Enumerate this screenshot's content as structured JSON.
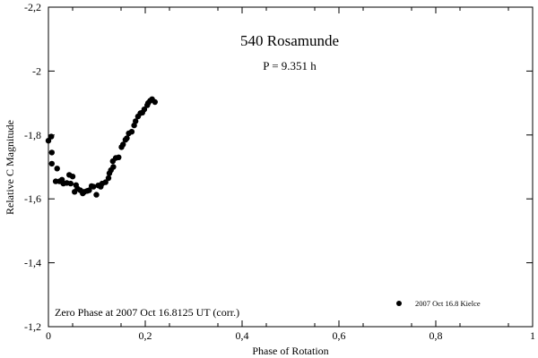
{
  "chart_data": {
    "type": "scatter",
    "title": "540 Rosamunde",
    "subtitle": "P = 9.351 h",
    "xlabel": "Phase of Rotation",
    "ylabel": "Relative C Magnitude",
    "xlim": [
      0,
      1
    ],
    "ylim": [
      -1.2,
      -2.2
    ],
    "y_axis_inverted": true,
    "grid": false,
    "x_ticks": [
      "0",
      "0,2",
      "0,4",
      "0,6",
      "0,8",
      "1"
    ],
    "y_ticks": [
      "-2,2",
      "-2",
      "-1,8",
      "-1,6",
      "-1,4",
      "-1,2"
    ],
    "x_tick_values": [
      0,
      0.2,
      0.4,
      0.6,
      0.8,
      1.0
    ],
    "y_tick_values": [
      -2.2,
      -2.0,
      -1.8,
      -1.6,
      -1.4,
      -1.2
    ],
    "annotation": "Zero Phase at 2007 Oct 16.8125 UT (corr.)",
    "legend_position": "bottom-right",
    "series": [
      {
        "name": "2007 Oct 16.8 Kielce",
        "marker": "filled-circle",
        "color": "#000000",
        "points": [
          [
            0.0,
            -1.782
          ],
          [
            0.006,
            -1.795
          ],
          [
            0.007,
            -1.745
          ],
          [
            0.007,
            -1.71
          ],
          [
            0.015,
            -1.655
          ],
          [
            0.018,
            -1.695
          ],
          [
            0.023,
            -1.655
          ],
          [
            0.028,
            -1.66
          ],
          [
            0.031,
            -1.648
          ],
          [
            0.038,
            -1.65
          ],
          [
            0.043,
            -1.675
          ],
          [
            0.046,
            -1.648
          ],
          [
            0.05,
            -1.67
          ],
          [
            0.054,
            -1.622
          ],
          [
            0.057,
            -1.643
          ],
          [
            0.06,
            -1.632
          ],
          [
            0.066,
            -1.627
          ],
          [
            0.071,
            -1.617
          ],
          [
            0.074,
            -1.622
          ],
          [
            0.08,
            -1.625
          ],
          [
            0.084,
            -1.627
          ],
          [
            0.089,
            -1.64
          ],
          [
            0.093,
            -1.638
          ],
          [
            0.099,
            -1.613
          ],
          [
            0.103,
            -1.642
          ],
          [
            0.108,
            -1.638
          ],
          [
            0.111,
            -1.648
          ],
          [
            0.118,
            -1.652
          ],
          [
            0.124,
            -1.665
          ],
          [
            0.126,
            -1.68
          ],
          [
            0.129,
            -1.69
          ],
          [
            0.133,
            -1.718
          ],
          [
            0.134,
            -1.7
          ],
          [
            0.139,
            -1.728
          ],
          [
            0.145,
            -1.73
          ],
          [
            0.151,
            -1.762
          ],
          [
            0.154,
            -1.77
          ],
          [
            0.159,
            -1.785
          ],
          [
            0.162,
            -1.79
          ],
          [
            0.166,
            -1.805
          ],
          [
            0.172,
            -1.81
          ],
          [
            0.177,
            -1.83
          ],
          [
            0.18,
            -1.843
          ],
          [
            0.185,
            -1.858
          ],
          [
            0.19,
            -1.868
          ],
          [
            0.194,
            -1.87
          ],
          [
            0.198,
            -1.88
          ],
          [
            0.204,
            -1.893
          ],
          [
            0.206,
            -1.9
          ],
          [
            0.21,
            -1.907
          ],
          [
            0.214,
            -1.912
          ],
          [
            0.22,
            -1.903
          ]
        ]
      }
    ]
  }
}
